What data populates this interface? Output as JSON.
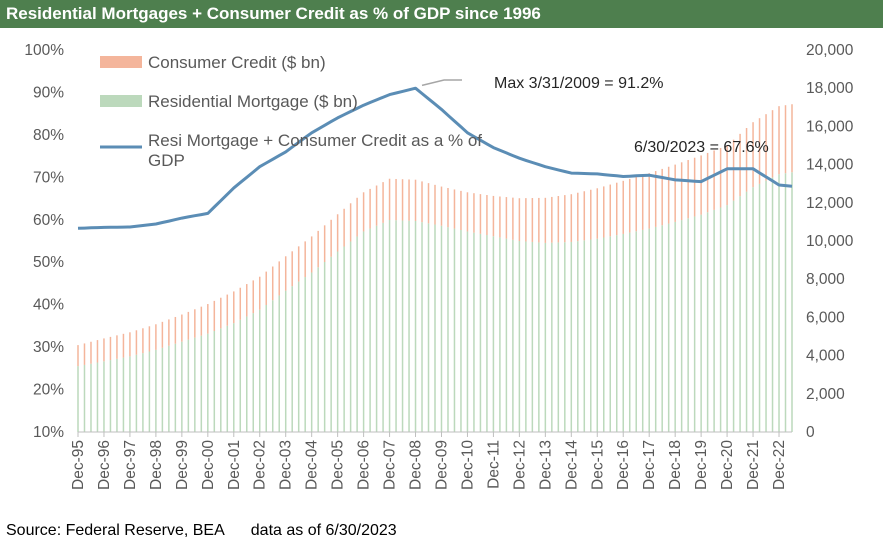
{
  "title": "Residential Mortgages + Consumer Credit as % of GDP since 1996",
  "footer": {
    "source": "Source: Federal Reserve, BEA",
    "data_as_of": "data as of 6/30/2023"
  },
  "colors": {
    "title_bg": "#4e7f4e",
    "consumer_credit": "#f4b59b",
    "residential_mortgage": "#bcd9bc",
    "ratio_line": "#5b8db5"
  },
  "chart_data": {
    "type": "bar+line",
    "title": "Residential Mortgages + Consumer Credit as % of GDP since 1996",
    "x_tick_labels": [
      "Dec-95",
      "Dec-96",
      "Dec-97",
      "Dec-98",
      "Dec-99",
      "Dec-00",
      "Dec-01",
      "Dec-02",
      "Dec-03",
      "Dec-04",
      "Dec-05",
      "Dec-06",
      "Dec-07",
      "Dec-08",
      "Dec-09",
      "Dec-10",
      "Dec-11",
      "Dec-12",
      "Dec-13",
      "Dec-14",
      "Dec-15",
      "Dec-16",
      "Dec-17",
      "Dec-18",
      "Dec-19",
      "Dec-20",
      "Dec-21",
      "Dec-22"
    ],
    "x_start": "Dec-95",
    "x_end": "Jun-23",
    "x_frequency": "quarterly",
    "y_left": {
      "ticks": [
        "10%",
        "20%",
        "30%",
        "40%",
        "50%",
        "60%",
        "70%",
        "80%",
        "90%",
        "100%"
      ],
      "range": [
        10,
        100
      ],
      "unit": "%"
    },
    "y_right": {
      "ticks": [
        "0",
        "2,000",
        "4,000",
        "6,000",
        "8,000",
        "10,000",
        "12,000",
        "14,000",
        "16,000",
        "18,000",
        "20,000"
      ],
      "range": [
        0,
        20000
      ],
      "unit": "$ bn"
    },
    "grid": false,
    "legend_position": "top-left",
    "series": [
      {
        "name": "Consumer Credit ($ bn)",
        "type": "stacked-bar",
        "axis": "right",
        "annual_dec_values": [
          1100,
          1200,
          1260,
          1340,
          1420,
          1550,
          1660,
          1730,
          1800,
          1890,
          1950,
          2050,
          2160,
          2160,
          2050,
          2050,
          2110,
          2240,
          2360,
          2500,
          2640,
          2780,
          2900,
          3000,
          3100,
          3120,
          3400,
          3560,
          3560
        ]
      },
      {
        "name": "Residential Mortgage ($ bn)",
        "type": "stacked-bar",
        "axis": "right",
        "annual_dec_values": [
          3450,
          3700,
          3960,
          4300,
          4730,
          5150,
          5700,
          6400,
          7400,
          8350,
          9450,
          10500,
          11100,
          11050,
          10800,
          10500,
          10250,
          10000,
          9900,
          9950,
          10120,
          10370,
          10650,
          11000,
          11380,
          11880,
          12820,
          13500,
          13700
        ]
      },
      {
        "name": "Resi Mortgage + Consumer Credit as a % of GDP",
        "type": "line",
        "axis": "left",
        "annual_dec_values": [
          58.0,
          58.2,
          58.3,
          59.0,
          60.4,
          61.5,
          67.5,
          72.5,
          76.0,
          80.5,
          84.0,
          87.0,
          89.5,
          91.0,
          86.0,
          80.5,
          77.0,
          74.5,
          72.5,
          71.0,
          70.8,
          70.2,
          70.5,
          69.4,
          69.0,
          72.0,
          72.0,
          68.2,
          67.6
        ]
      }
    ],
    "annotations": [
      {
        "text": "Max 3/31/2009 = 91.2%",
        "x": "Mar-09",
        "y": 91.2
      },
      {
        "text": "6/30/2023 = 67.6%",
        "x": "Jun-23",
        "y": 67.6
      }
    ]
  }
}
